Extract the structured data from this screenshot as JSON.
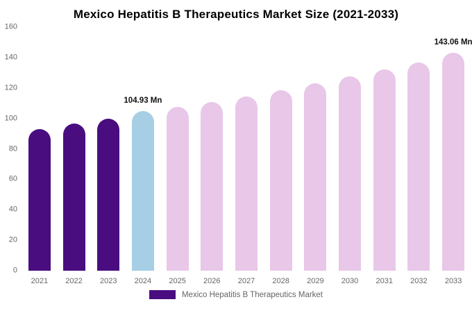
{
  "chart_data": {
    "type": "bar",
    "title": "Mexico Hepatitis B Therapeutics Market Size (2021-2033)",
    "categories": [
      "2021",
      "2022",
      "2023",
      "2024",
      "2025",
      "2026",
      "2027",
      "2028",
      "2029",
      "2030",
      "2031",
      "2032",
      "2033"
    ],
    "values": [
      93,
      96.5,
      100,
      104.93,
      107.5,
      111,
      114.5,
      118.5,
      123,
      127.5,
      132,
      137,
      143.06
    ],
    "bar_roles": [
      "historical",
      "historical",
      "historical",
      "highlight",
      "forecast",
      "forecast",
      "forecast",
      "forecast",
      "forecast",
      "forecast",
      "forecast",
      "forecast",
      "forecast"
    ],
    "colors": {
      "historical": "#4a0d7f",
      "highlight": "#a6cfe5",
      "forecast": "#e8c7e9"
    },
    "ylim": [
      0,
      160
    ],
    "yticks": [
      0,
      20,
      40,
      60,
      80,
      100,
      120,
      140,
      160
    ],
    "grid": false,
    "annotations": [
      {
        "index": 3,
        "label": "104.93 Mn"
      },
      {
        "index": 12,
        "label": "143.06 Mn"
      }
    ],
    "legend": [
      {
        "label": "Mexico Hepatitis B Therapeutics Market",
        "color": "#4a0d7f"
      }
    ],
    "legend_position": "bottom"
  }
}
